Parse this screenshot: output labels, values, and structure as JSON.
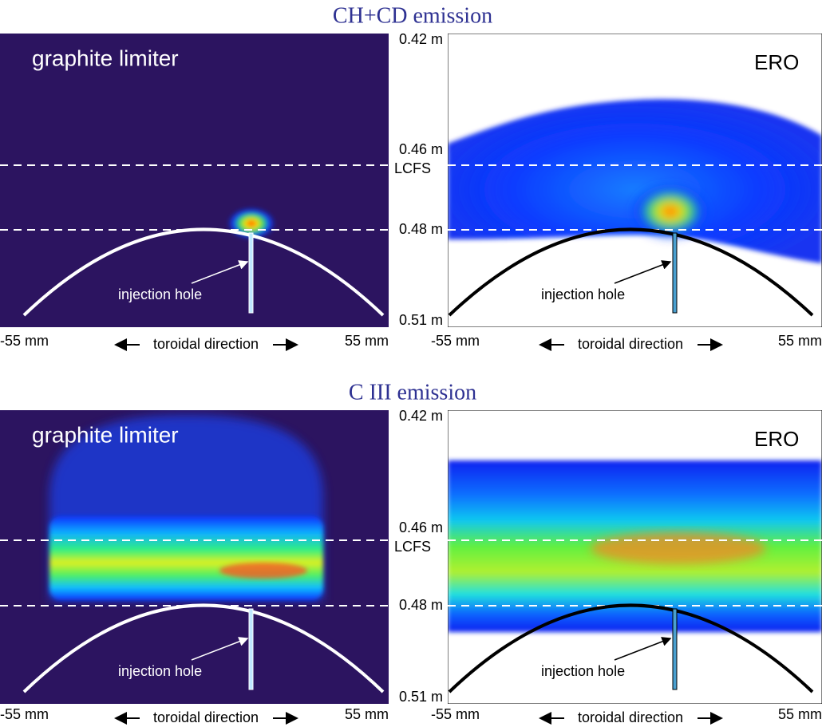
{
  "rows": [
    {
      "title": "CH+CD emission",
      "y_labels": [
        "0.42 m",
        "0.46 m",
        "LCFS",
        "0.48 m",
        "0.51 m"
      ],
      "left": {
        "label": "graphite limiter",
        "annotation": "injection hole",
        "x_labels": [
          "-55 mm",
          "toroidal direction",
          "55 mm"
        ]
      },
      "right": {
        "label": "ERO",
        "annotation": "injection hole",
        "x_labels": [
          "-55 mm",
          "toroidal direction",
          "55 mm"
        ]
      }
    },
    {
      "title": "C III emission",
      "y_labels": [
        "0.42 m",
        "0.46 m",
        "LCFS",
        "0.48 m",
        "0.51 m"
      ],
      "left": {
        "label": "graphite limiter",
        "annotation": "injection hole",
        "x_labels": [
          "-55 mm",
          "toroidal direction",
          "55 mm"
        ]
      },
      "right": {
        "label": "ERO",
        "annotation": "injection hole",
        "x_labels": [
          "-55 mm",
          "toroidal direction",
          "55 mm"
        ]
      }
    }
  ]
}
